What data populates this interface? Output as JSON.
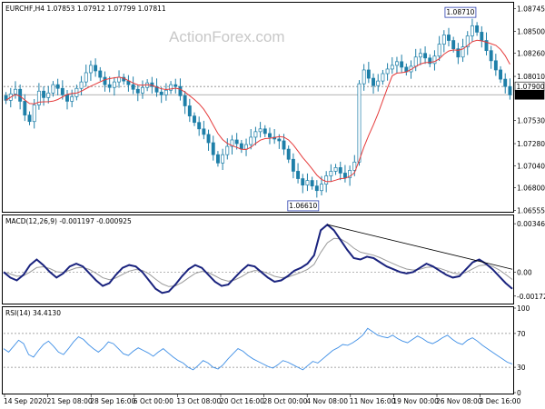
{
  "chart_data": [
    {
      "type": "candlestick",
      "symbol_line": "EURCHF,H4  1.07853 1.07912 1.07799 1.07811",
      "watermark": "ActionForex.com",
      "ylim": [
        1.0655,
        1.088
      ],
      "y_ticks": [
        "1.08745",
        "1.08500",
        "1.08260",
        "1.08010",
        "1.07900",
        "1.07811",
        "1.07530",
        "1.07280",
        "1.07040",
        "1.06800",
        "1.06555"
      ],
      "price_labels": {
        "current": "1.07811",
        "dashed_level": "1.07900"
      },
      "annotations": {
        "high": "1.08710",
        "low": "1.06610"
      },
      "closes": [
        1.0775,
        1.0782,
        1.0787,
        1.0774,
        1.0759,
        1.0752,
        1.077,
        1.0785,
        1.0778,
        1.0783,
        1.0792,
        1.0788,
        1.0781,
        1.0774,
        1.0779,
        1.0788,
        1.0795,
        1.0805,
        1.0813,
        1.0807,
        1.08,
        1.0792,
        1.0789,
        1.0795,
        1.08,
        1.0796,
        1.0792,
        1.0787,
        1.0783,
        1.0789,
        1.0794,
        1.079,
        1.0784,
        1.0781,
        1.0786,
        1.0792,
        1.079,
        1.078,
        1.0769,
        1.0758,
        1.0751,
        1.0744,
        1.0738,
        1.0729,
        1.0716,
        1.0707,
        1.0716,
        1.0725,
        1.0732,
        1.0728,
        1.0722,
        1.0727,
        1.0735,
        1.0741,
        1.0744,
        1.0739,
        1.0735,
        1.0733,
        1.0731,
        1.0722,
        1.0711,
        1.0698,
        1.069,
        1.0683,
        1.0688,
        1.0682,
        1.0677,
        1.0684,
        1.0693,
        1.0698,
        1.0702,
        1.0696,
        1.0691,
        1.0699,
        1.0708,
        1.0793,
        1.0808,
        1.0799,
        1.0791,
        1.0796,
        1.0804,
        1.0809,
        1.0813,
        1.0817,
        1.0811,
        1.0806,
        1.0812,
        1.0822,
        1.0826,
        1.0821,
        1.0815,
        1.0823,
        1.0836,
        1.0846,
        1.084,
        1.0831,
        1.0822,
        1.0833,
        1.0845,
        1.0856,
        1.0849,
        1.084,
        1.0829,
        1.0818,
        1.0808,
        1.0798,
        1.079,
        1.0781
      ],
      "ma_type": "moving average (red)"
    },
    {
      "type": "line",
      "label": "MACD(12,26,9) -0.001197 -0.000925",
      "ylim": [
        -0.0022,
        0.004
      ],
      "y_ticks": [
        "0.003469",
        "0.00",
        "-0.001729"
      ],
      "zero_level": 0,
      "macd": [
        0.0,
        -0.0004,
        -0.0006,
        -0.0002,
        0.0005,
        0.0009,
        0.0005,
        0.0,
        -0.0004,
        -0.0001,
        0.0004,
        0.0006,
        0.0004,
        -0.0001,
        -0.0006,
        -0.001,
        -0.0008,
        -0.0002,
        0.0003,
        0.0005,
        0.0004,
        0.0,
        -0.0006,
        -0.0012,
        -0.0015,
        -0.0014,
        -0.0009,
        -0.0003,
        0.0002,
        0.0005,
        0.0003,
        -0.0002,
        -0.0007,
        -0.001,
        -0.0009,
        -0.0004,
        0.0001,
        0.0005,
        0.0004,
        0.0,
        -0.0004,
        -0.0007,
        -0.0006,
        -0.0003,
        0.0001,
        0.0003,
        0.0006,
        0.0012,
        0.003,
        0.0034,
        0.003,
        0.0023,
        0.0016,
        0.001,
        0.0009,
        0.0011,
        0.001,
        0.0007,
        0.0004,
        0.0002,
        0.0,
        -0.0001,
        0.0,
        0.0003,
        0.0006,
        0.0004,
        0.0001,
        -0.0002,
        -0.0004,
        -0.0003,
        0.0002,
        0.0007,
        0.0009,
        0.0006,
        0.0002,
        -0.0003,
        -0.0008,
        -0.0012
      ],
      "trendline": {
        "from": [
          0.637,
          0.0034
        ],
        "to": [
          1.0,
          0.0002
        ]
      }
    },
    {
      "type": "line",
      "label": "RSI(14) 34.4130",
      "ylim": [
        0,
        100
      ],
      "y_ticks": [
        "100",
        "70",
        "30",
        "0"
      ],
      "levels": [
        70,
        30
      ],
      "rsi": [
        52,
        48,
        55,
        62,
        58,
        45,
        42,
        50,
        57,
        61,
        55,
        48,
        45,
        52,
        60,
        66,
        63,
        57,
        52,
        48,
        53,
        60,
        58,
        52,
        46,
        44,
        49,
        53,
        50,
        47,
        43,
        48,
        52,
        47,
        42,
        38,
        35,
        30,
        27,
        32,
        38,
        35,
        30,
        28,
        33,
        40,
        46,
        52,
        49,
        44,
        40,
        37,
        34,
        31,
        29,
        33,
        38,
        36,
        33,
        30,
        27,
        32,
        37,
        35,
        40,
        45,
        50,
        53,
        57,
        56,
        59,
        63,
        68,
        76,
        72,
        68,
        66,
        65,
        68,
        64,
        61,
        59,
        63,
        67,
        64,
        60,
        58,
        61,
        65,
        68,
        63,
        59,
        57,
        62,
        65,
        61,
        56,
        52,
        48,
        44,
        40,
        36,
        34
      ]
    }
  ],
  "x_axis_labels": [
    "14 Sep 2020",
    "21 Sep 08:00",
    "28 Sep 16:00",
    "6 Oct 00:00",
    "13 Oct 08:00",
    "20 Oct 16:00",
    "28 Oct 00:00",
    "4 Nov 08:00",
    "11 Nov 16:00",
    "19 Nov 00:00",
    "26 Nov 08:00",
    "3 Dec 16:00"
  ],
  "colors": {
    "up_down_candle": "#1e7fa8",
    "ma_line": "#e53b3b",
    "macd_line": "#1a237e",
    "signal_line": "#9a9a9a",
    "rsi_line": "#3f8fe6",
    "trend_line": "#000000",
    "grid_dashed": "#8a8a8a"
  }
}
